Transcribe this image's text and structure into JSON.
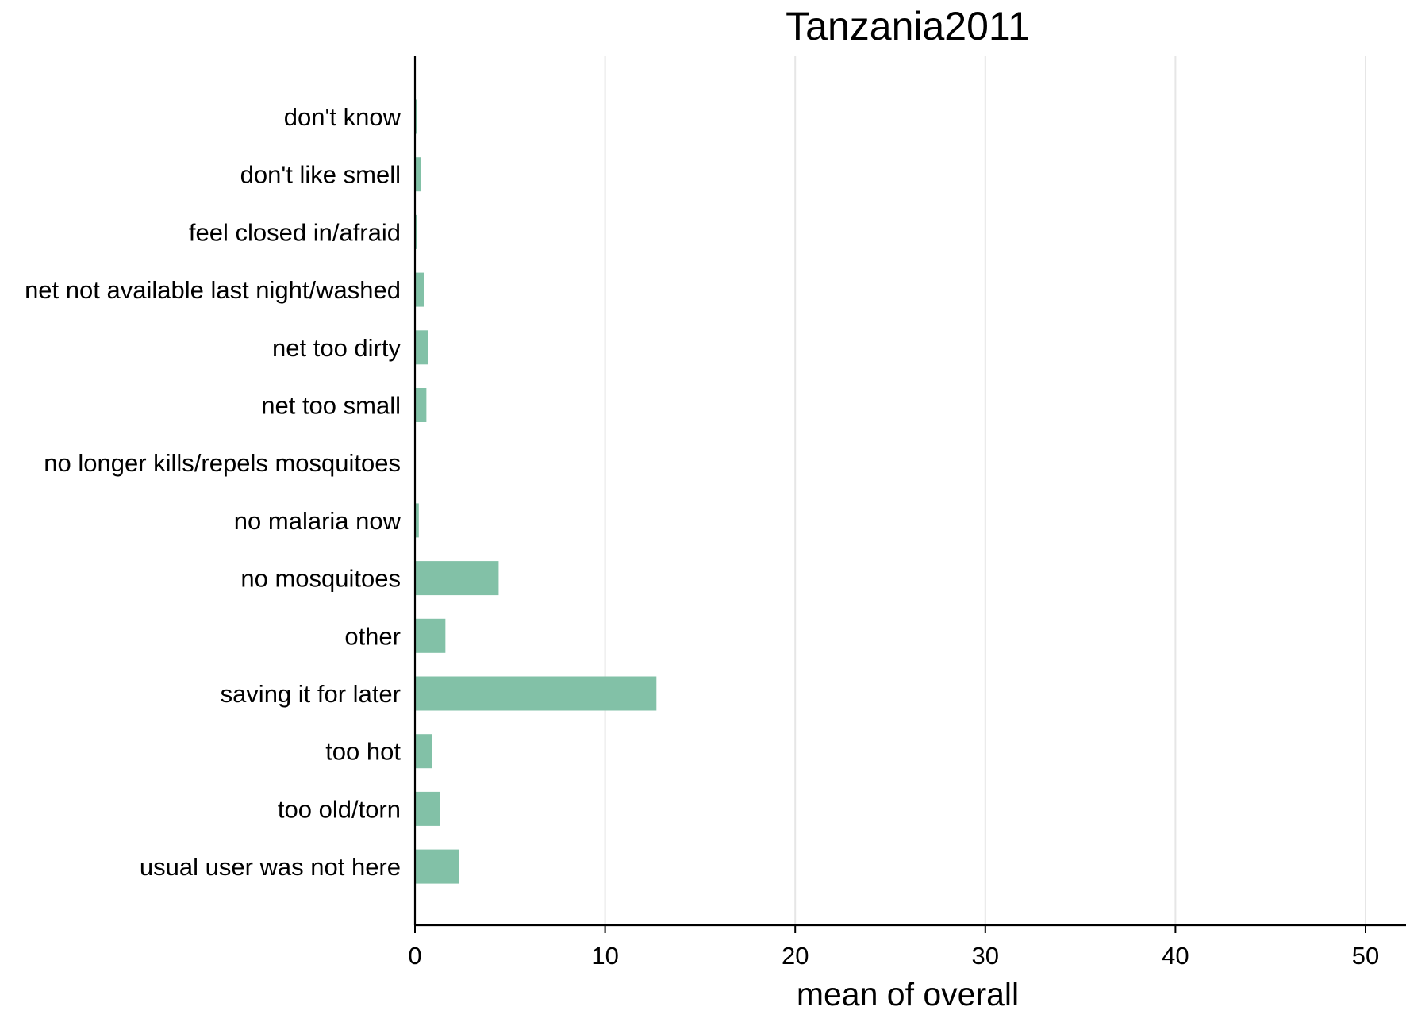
{
  "chart_data": {
    "type": "bar",
    "orientation": "horizontal",
    "title": "Tanzania2011",
    "xlabel": "mean of overall",
    "ylabel": "",
    "categories": [
      "don't know",
      "don't like smell",
      "feel closed in/afraid",
      "net not available last night/washed",
      "net too dirty",
      "net too small",
      "no longer kills/repels mosquitoes",
      "no malaria now",
      "no mosquitoes",
      "other",
      "saving it for later",
      "too hot",
      "too old/torn",
      "usual user was not here"
    ],
    "values": [
      0.1,
      0.3,
      0.1,
      0.5,
      0.7,
      0.6,
      0,
      0.2,
      4.4,
      1.6,
      12.7,
      0.9,
      1.3,
      2.3
    ],
    "xlim": [
      0,
      50
    ],
    "xticks": [
      0,
      10,
      20,
      30,
      40,
      50
    ],
    "grid": true,
    "colors": {
      "bar": "#82c1a7",
      "grid": "#e6e6e6",
      "axis": "#000000"
    }
  }
}
